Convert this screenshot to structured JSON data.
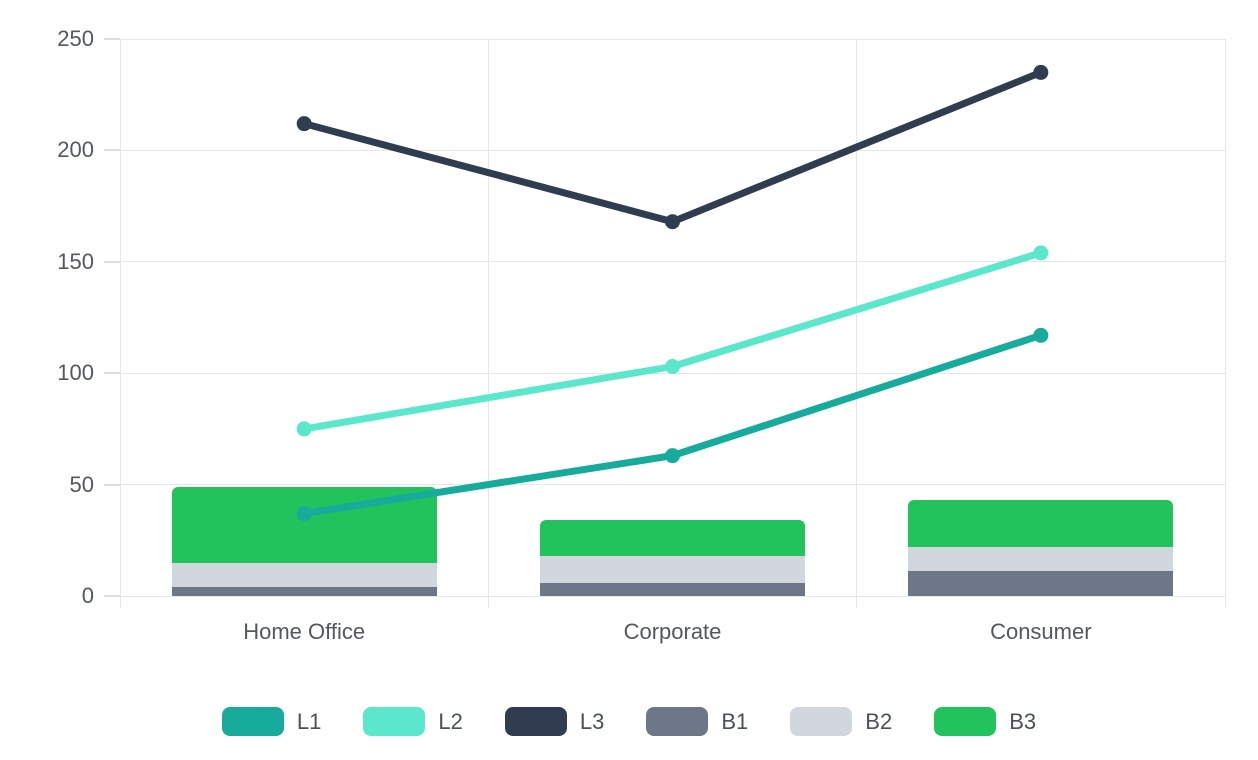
{
  "chart_data": {
    "type": "combo-stacked-bar-line",
    "title": "",
    "xlabel": "",
    "ylabel": "",
    "categories": [
      "Home Office",
      "Corporate",
      "Consumer"
    ],
    "bar_series": [
      {
        "name": "B1",
        "color": "#6e7787",
        "values": [
          4,
          6,
          11
        ]
      },
      {
        "name": "B2",
        "color": "#d2d6dd",
        "values": [
          11,
          12,
          11
        ]
      },
      {
        "name": "B3",
        "color": "#22c35c",
        "values": [
          34,
          16,
          21
        ]
      }
    ],
    "line_series": [
      {
        "name": "L1",
        "color": "#17ab9b",
        "values": [
          37,
          63,
          117
        ]
      },
      {
        "name": "L2",
        "color": "#5be7cc",
        "values": [
          75,
          103,
          154
        ]
      },
      {
        "name": "L3",
        "color": "#303c50",
        "values": [
          212,
          168,
          235
        ]
      }
    ],
    "y_ticks": [
      "0",
      "50",
      "100",
      "150",
      "200",
      "250"
    ],
    "ylim": [
      0,
      250
    ],
    "grid": true,
    "legend": {
      "position": "bottom",
      "items": [
        {
          "label": "L1",
          "color": "#17ab9b"
        },
        {
          "label": "L2",
          "color": "#5be7cc"
        },
        {
          "label": "L3",
          "color": "#303c50"
        },
        {
          "label": "B1",
          "color": "#6e7787"
        },
        {
          "label": "B2",
          "color": "#d2d6dd"
        },
        {
          "label": "B3",
          "color": "#22c35c"
        }
      ]
    }
  },
  "style": {
    "grid_color": "#e5e6e9",
    "axis_text_color": "#54585f",
    "legend_text_color": "#4b5158",
    "background": "#ffffff"
  }
}
